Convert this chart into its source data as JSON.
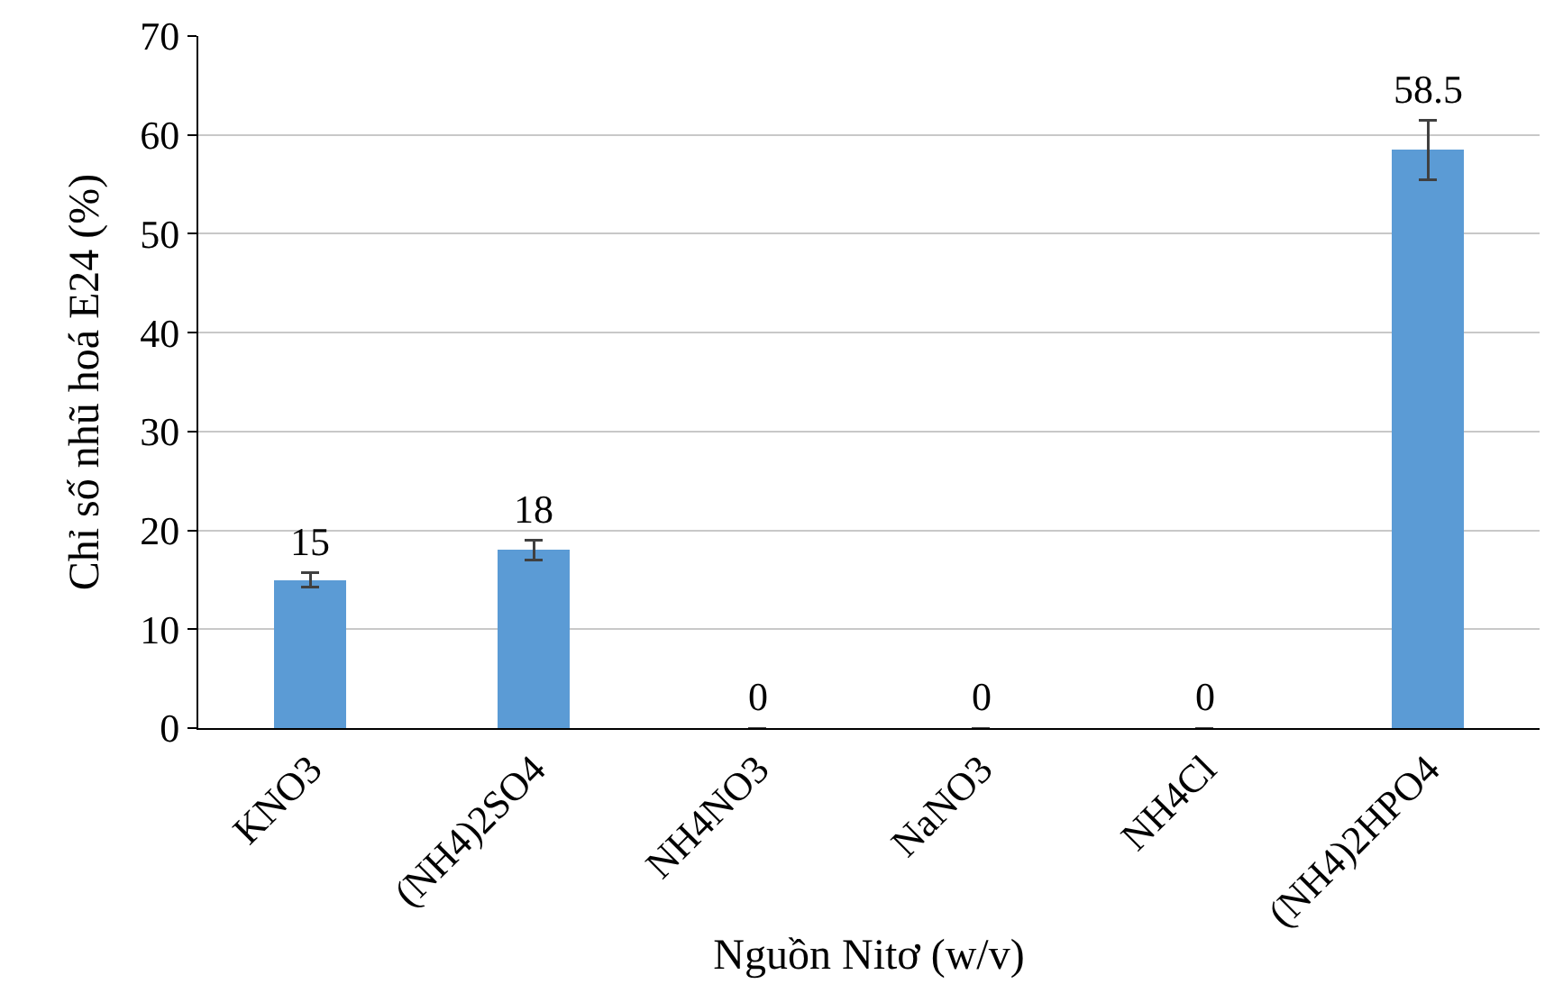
{
  "chart_data": {
    "type": "bar",
    "xlabel": "Nguồn Nitơ (w/v)",
    "ylabel": "Chỉ số nhũ hoá E24 (%)",
    "categories": [
      "KNO3",
      "(NH4)2SO4",
      "NH4NO3",
      "NaNO3",
      "NH4Cl",
      "(NH4)2HPO4"
    ],
    "values": [
      15,
      18,
      0,
      0,
      0,
      58.5
    ],
    "errors": [
      0.7,
      1,
      null,
      null,
      null,
      3
    ],
    "color": "#5b9bd5",
    "ylim": [
      0,
      70
    ],
    "yticks": [
      0,
      10,
      20,
      30,
      40,
      50,
      60,
      70
    ],
    "grid": "y",
    "data_labels": true
  }
}
